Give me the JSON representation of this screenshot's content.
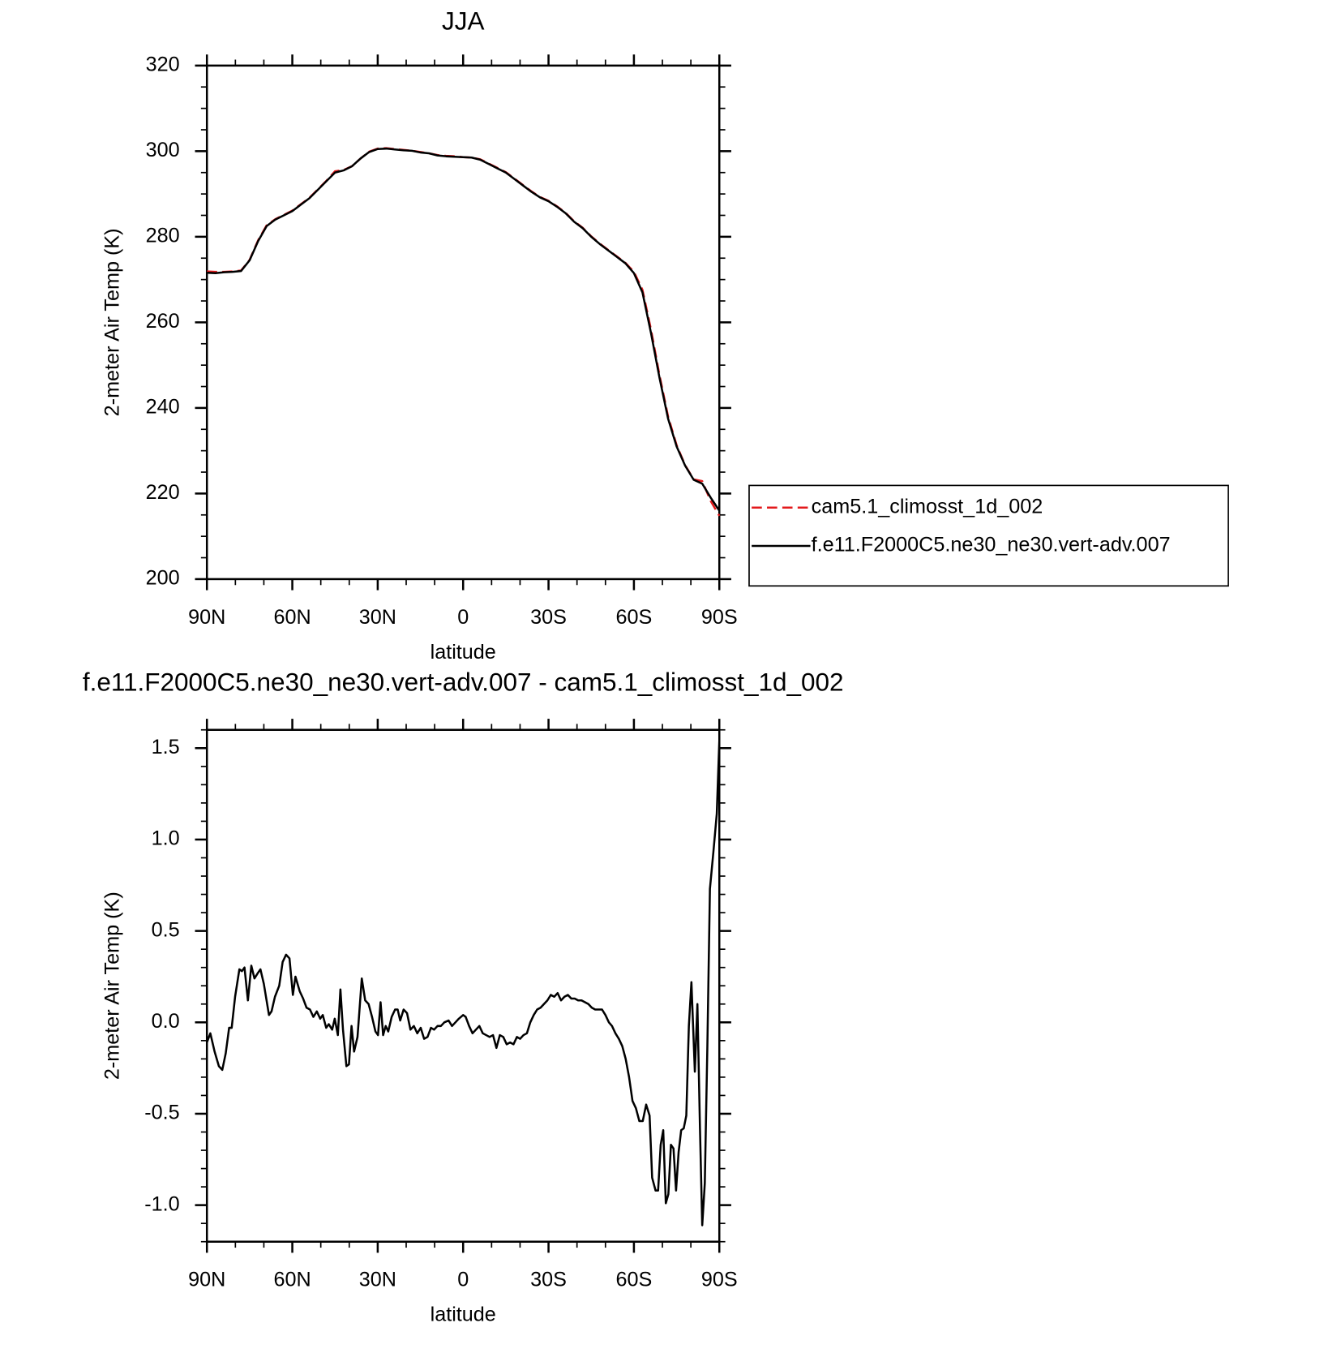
{
  "chart_data": [
    {
      "type": "line",
      "title": "JJA",
      "x_label": "latitude",
      "y_label": "2-meter Air Temp (K)",
      "x": [
        90,
        87,
        84,
        81,
        78,
        75,
        72,
        69,
        66,
        63,
        60,
        57,
        54,
        51,
        48,
        45,
        42,
        39,
        36,
        33,
        30,
        27,
        24,
        21,
        18,
        15,
        12,
        9,
        6,
        3,
        0,
        -3,
        -6,
        -9,
        -12,
        -15,
        -18,
        -21,
        -24,
        -27,
        -30,
        -33,
        -36,
        -39,
        -42,
        -45,
        -48,
        -51,
        -54,
        -57,
        -60,
        -63,
        -66,
        -69,
        -72,
        -75,
        -78,
        -81,
        -84,
        -87,
        -90
      ],
      "series": [
        {
          "name": "cam5.1_climosst_1d_002",
          "color": "#e31a1c",
          "style": "dashed",
          "values": [
            271.9,
            271.8,
            271.8,
            271.9,
            272.1,
            274.6,
            279.2,
            282.7,
            284.1,
            285.1,
            286.1,
            287.6,
            289.1,
            291.1,
            293.1,
            295.3,
            295.6,
            296.5,
            298.3,
            299.9,
            300.6,
            300.7,
            300.5,
            300.3,
            300.1,
            299.8,
            299.5,
            299.1,
            298.9,
            298.8,
            298.6,
            298.5,
            298.1,
            297.1,
            296.1,
            295.1,
            293.6,
            292.1,
            290.6,
            289.3,
            288.4,
            287.1,
            285.6,
            283.6,
            282.1,
            280.1,
            278.4,
            276.9,
            275.4,
            273.9,
            271.8,
            267.6,
            258.3,
            247.6,
            238,
            231.3,
            226.6,
            223.3,
            222.9,
            218.2,
            214.8
          ]
        },
        {
          "name": "f.e11.F2000C5.ne30_ne30.vert-adv.007",
          "color": "#000000",
          "style": "solid",
          "values": [
            271.6,
            271.5,
            271.7,
            271.8,
            272,
            274.5,
            279,
            282.5,
            284,
            285,
            286,
            287.5,
            289,
            291,
            293,
            295,
            295.5,
            296.5,
            298.3,
            299.8,
            300.5,
            300.6,
            300.4,
            300.2,
            300.1,
            299.7,
            299.5,
            299,
            298.8,
            298.7,
            298.6,
            298.5,
            298,
            297,
            296,
            295,
            293.5,
            292,
            290.5,
            289.2,
            288.3,
            287,
            285.5,
            283.5,
            282,
            280,
            278.3,
            276.8,
            275.3,
            273.8,
            271.5,
            267,
            257.5,
            247,
            237.5,
            231,
            226.5,
            223.2,
            222.3,
            219,
            216
          ]
        }
      ],
      "xlim": [
        90,
        -90
      ],
      "xticks": [
        {
          "value": 90,
          "label": "90N"
        },
        {
          "value": 60,
          "label": "60N"
        },
        {
          "value": 30,
          "label": "30N"
        },
        0,
        {
          "value": -30,
          "label": "30S"
        },
        {
          "value": -60,
          "label": "60S"
        },
        {
          "value": -90,
          "label": "90S"
        }
      ],
      "xminorticks": [
        80,
        70,
        50,
        40,
        20,
        10,
        -10,
        -20,
        -40,
        -50,
        -70,
        -80
      ],
      "ylim": [
        200,
        320
      ],
      "yticks": [
        200,
        220,
        240,
        260,
        280,
        300,
        320
      ],
      "yminorticks": [
        205,
        210,
        215,
        225,
        230,
        235,
        245,
        250,
        255,
        265,
        270,
        275,
        285,
        290,
        295,
        305,
        310,
        315
      ],
      "legend": "right"
    },
    {
      "type": "line",
      "title": "f.e11.F2000C5.ne30_ne30.vert-adv.007 - cam5.1_climosst_1d_002",
      "x_label": "latitude",
      "y_label": "2-meter Air Temp (K)",
      "x": [
        90,
        88.8,
        87.3,
        85.8,
        84.6,
        83.4,
        82.2,
        81.3,
        80.1,
        78.6,
        77.7,
        76.8,
        75.6,
        74.4,
        73.3,
        72.1,
        71.2,
        70,
        68.2,
        67.3,
        66.1,
        64.6,
        63.4,
        62.2,
        61,
        59.8,
        58.9,
        57.4,
        56.2,
        55,
        53.8,
        52.6,
        51.4,
        50.2,
        49.3,
        48.1,
        47.2,
        46,
        45.1,
        44,
        43.1,
        42.2,
        41,
        40.1,
        39.2,
        38.3,
        37.1,
        35.6,
        34.4,
        33.2,
        32,
        30.8,
        29.9,
        29,
        28.1,
        27.2,
        26.3,
        25.1,
        23.9,
        23,
        22.1,
        20.9,
        19.7,
        18.5,
        17.3,
        16.1,
        14.9,
        13.7,
        12.5,
        11.3,
        10.2,
        9,
        7.8,
        6.6,
        5.1,
        3.9,
        2.7,
        1.5,
        0,
        -0.9,
        -2.1,
        -3.3,
        -4.5,
        -5.7,
        -6.9,
        -8.1,
        -9.3,
        -10.5,
        -11.7,
        -12.9,
        -14.1,
        -15.3,
        -16.5,
        -17.7,
        -18.9,
        -20,
        -21.2,
        -22.4,
        -23.6,
        -24.8,
        -26,
        -27.2,
        -28.4,
        -29.6,
        -30.8,
        -32,
        -33.2,
        -34.4,
        -35.6,
        -36.8,
        -38,
        -39.2,
        -40.4,
        -41.6,
        -42.8,
        -44,
        -45.2,
        -46.4,
        -47.6,
        -48.8,
        -50,
        -51.2,
        -52.3,
        -53.5,
        -54.7,
        -55.9,
        -57.1,
        -58.3,
        -59.5,
        -60.7,
        -61.9,
        -63.1,
        -64.3,
        -65.5,
        -66.4,
        -67.6,
        -68.5,
        -69.4,
        -70.3,
        -71.2,
        -72.1,
        -73,
        -73.9,
        -74.8,
        -75.7,
        -76.6,
        -77.5,
        -78.4,
        -79.3,
        -80.2,
        -81.4,
        -82.3,
        -83.2,
        -84,
        -84.9,
        -85.8,
        -86.7,
        -87.9,
        -89.1,
        -90
      ],
      "values": [
        -0.11,
        -0.06,
        -0.16,
        -0.24,
        -0.26,
        -0.17,
        -0.03,
        -0.03,
        0.14,
        0.29,
        0.28,
        0.3,
        0.12,
        0.31,
        0.24,
        0.27,
        0.29,
        0.21,
        0.04,
        0.06,
        0.14,
        0.2,
        0.33,
        0.37,
        0.35,
        0.15,
        0.25,
        0.17,
        0.13,
        0.08,
        0.07,
        0.03,
        0.06,
        0.02,
        0.04,
        -0.03,
        -0.01,
        -0.04,
        0.02,
        -0.07,
        0.18,
        -0.04,
        -0.24,
        -0.23,
        -0.02,
        -0.16,
        -0.08,
        0.24,
        0.12,
        0.1,
        0.03,
        -0.05,
        -0.07,
        0.11,
        -0.07,
        -0.02,
        -0.05,
        0.03,
        0.07,
        0.07,
        0.01,
        0.07,
        0.05,
        -0.04,
        -0.02,
        -0.06,
        -0.03,
        -0.09,
        -0.08,
        -0.03,
        -0.04,
        -0.02,
        -0.02,
        0,
        0.01,
        -0.02,
        0,
        0.02,
        0.04,
        0.03,
        -0.02,
        -0.06,
        -0.04,
        -0.02,
        -0.06,
        -0.07,
        -0.08,
        -0.07,
        -0.14,
        -0.07,
        -0.08,
        -0.12,
        -0.11,
        -0.12,
        -0.08,
        -0.09,
        -0.07,
        -0.06,
        0,
        0.04,
        0.07,
        0.08,
        0.1,
        0.12,
        0.15,
        0.14,
        0.16,
        0.12,
        0.14,
        0.15,
        0.13,
        0.13,
        0.12,
        0.12,
        0.11,
        0.1,
        0.08,
        0.07,
        0.07,
        0.07,
        0.04,
        0,
        -0.02,
        -0.06,
        -0.09,
        -0.13,
        -0.2,
        -0.3,
        -0.43,
        -0.47,
        -0.54,
        -0.54,
        -0.45,
        -0.51,
        -0.85,
        -0.92,
        -0.92,
        -0.67,
        -0.59,
        -0.99,
        -0.94,
        -0.67,
        -0.69,
        -0.92,
        -0.71,
        -0.59,
        -0.58,
        -0.51,
        -0.02,
        0.22,
        -0.27,
        0.1,
        -0.58,
        -1.11,
        -0.88,
        -0.13,
        0.73,
        0.93,
        1.14,
        1.54
      ],
      "color": "#000000",
      "xlim": [
        90,
        -90
      ],
      "xticks": [
        {
          "value": 90,
          "label": "90N"
        },
        {
          "value": 60,
          "label": "60N"
        },
        {
          "value": 30,
          "label": "30N"
        },
        0,
        {
          "value": -30,
          "label": "30S"
        },
        {
          "value": -60,
          "label": "60S"
        },
        {
          "value": -90,
          "label": "90S"
        }
      ],
      "xminorticks": [
        80,
        70,
        50,
        40,
        20,
        10,
        -10,
        -20,
        -40,
        -50,
        -70,
        -80
      ],
      "ylim": [
        -1.2,
        1.6
      ],
      "yticks": [
        {
          "value": -1,
          "label": "-1.0"
        },
        -0.5,
        {
          "value": 0,
          "label": "0.0"
        },
        0.5,
        {
          "value": 1,
          "label": "1.0"
        },
        1.5
      ],
      "yminorticks": [
        -1.2,
        -1.1,
        -0.9,
        -0.8,
        -0.7,
        -0.6,
        -0.4,
        -0.3,
        -0.2,
        -0.1,
        0.1,
        0.2,
        0.3,
        0.4,
        0.6,
        0.7,
        0.8,
        0.9,
        1.1,
        1.2,
        1.3,
        1.4,
        1.6
      ]
    }
  ]
}
